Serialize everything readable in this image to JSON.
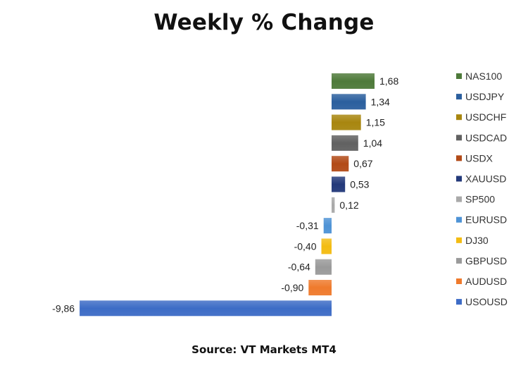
{
  "chart_data": {
    "type": "bar",
    "orientation": "horizontal",
    "title": "Weekly % Change",
    "source": "Source: VT Markets MT4",
    "decimal_separator": ",",
    "legend_position": "right",
    "grid": false,
    "xlim": [
      -9.86,
      1.68
    ],
    "categories": [
      "NAS100",
      "USDJPY",
      "USDCHF",
      "USDCAD",
      "USDX",
      "XAUUSD",
      "SP500",
      "EURUSD",
      "DJ30",
      "GBPUSD",
      "AUDUSD",
      "USOUSD"
    ],
    "values": [
      1.68,
      1.34,
      1.15,
      1.04,
      0.67,
      0.53,
      0.12,
      -0.31,
      -0.4,
      -0.64,
      -0.9,
      -9.86
    ],
    "labels": [
      "1,68",
      "1,34",
      "1,15",
      "1,04",
      "0,67",
      "0,53",
      "0,12",
      "-0,31",
      "-0,40",
      "-0,64",
      "-0,90",
      "-9,86"
    ],
    "colors": [
      "#4E7A3A",
      "#2B5F9E",
      "#A8860F",
      "#616161",
      "#B24A17",
      "#23397A",
      "#A9A9A9",
      "#4E93D6",
      "#F3BC12",
      "#9A9A9A",
      "#EF7A2C",
      "#3D6CC6"
    ]
  }
}
